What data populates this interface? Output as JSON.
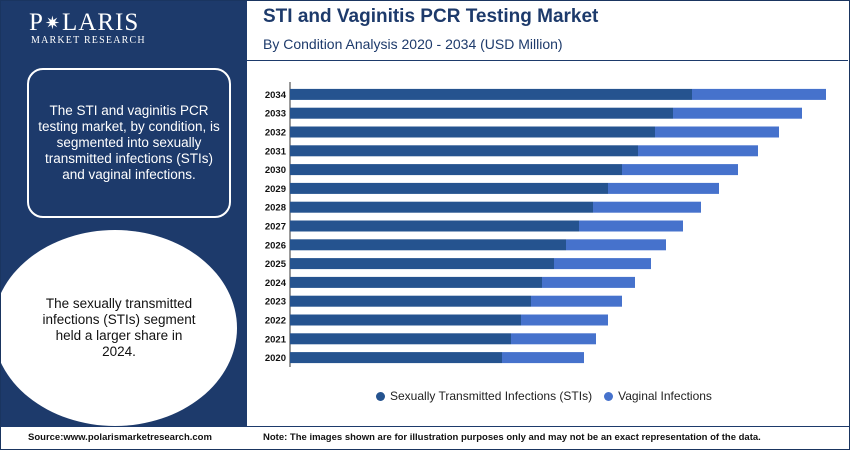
{
  "brand": {
    "name_left": "P",
    "name_right": "LARIS",
    "tagline": "MARKET RESEARCH"
  },
  "panel": {
    "info_text": "The STI and vaginitis PCR testing market, by condition, is segmented into sexually transmitted infections (STIs) and vaginal infections.",
    "highlight_text": "The sexually transmitted infections (STIs) segment held a larger share in 2024."
  },
  "header": {
    "title": "STI and Vaginitis PCR Testing Market",
    "subtitle": "By Condition Analysis 2020 - 2034 (USD Million)"
  },
  "footer": {
    "source": "Source:www.polarismarketresearch.com",
    "note": "Note: The images shown are for illustration purposes only and may not be an exact representation of the data."
  },
  "colors": {
    "navy": "#1d3a6b",
    "sti": "#25538f",
    "vaginal": "#4672cc"
  },
  "chart_data": {
    "type": "bar",
    "orientation": "horizontal",
    "stacked": true,
    "categories": [
      "2034",
      "2033",
      "2032",
      "2031",
      "2030",
      "2029",
      "2028",
      "2027",
      "2026",
      "2025",
      "2024",
      "2023",
      "2022",
      "2021",
      "2020"
    ],
    "series": [
      {
        "name": "Sexually Transmitted Infections (STIs)",
        "color": "#25538f",
        "values": [
          402,
          383,
          365,
          348,
          332,
          318,
          303,
          289,
          276,
          264,
          252,
          241,
          231,
          221,
          212
        ]
      },
      {
        "name": "Vaginal Infections",
        "color": "#4672cc",
        "values": [
          134,
          129,
          124,
          120,
          116,
          111,
          108,
          104,
          100,
          97,
          93,
          91,
          87,
          85,
          82
        ]
      }
    ],
    "xlim": [
      0,
      540
    ],
    "x_axis_labels": false,
    "grid": false,
    "legend": "bottom"
  }
}
